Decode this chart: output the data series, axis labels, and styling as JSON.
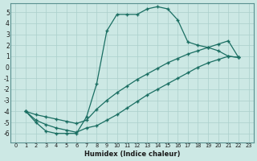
{
  "xlabel": "Humidex (Indice chaleur)",
  "xlim": [
    -0.5,
    23.5
  ],
  "ylim": [
    -6.8,
    5.8
  ],
  "yticks": [
    5,
    4,
    3,
    2,
    1,
    0,
    -1,
    -2,
    -3,
    -4,
    -5,
    -6
  ],
  "xticks": [
    0,
    1,
    2,
    3,
    4,
    5,
    6,
    7,
    8,
    9,
    10,
    11,
    12,
    13,
    14,
    15,
    16,
    17,
    18,
    19,
    20,
    21,
    22,
    23
  ],
  "bg_color": "#cce8e4",
  "grid_color": "#aacfcb",
  "line_color": "#1a6e62",
  "curve1_x": [
    1,
    2,
    3,
    4,
    5,
    6,
    7,
    8,
    9,
    10,
    11,
    12,
    13,
    14,
    15,
    16,
    17,
    18,
    19,
    20,
    21,
    22
  ],
  "curve1_y": [
    -4.0,
    -5.0,
    -5.8,
    -6.0,
    -6.0,
    -6.0,
    -4.5,
    -1.5,
    3.3,
    4.8,
    4.8,
    4.8,
    5.3,
    5.5,
    5.3,
    4.3,
    2.3,
    2.0,
    1.8,
    1.5,
    1.0,
    0.9
  ],
  "curve2_x": [
    1,
    2,
    3,
    4,
    5,
    6,
    7,
    8,
    9,
    10,
    11,
    12,
    13,
    14,
    15,
    16,
    17,
    18,
    19,
    20,
    21,
    22
  ],
  "curve2_y": [
    -4.0,
    -4.3,
    -4.5,
    -4.7,
    -4.9,
    -5.1,
    -4.8,
    -3.8,
    -3.0,
    -2.3,
    -1.7,
    -1.1,
    -0.6,
    -0.1,
    0.4,
    0.8,
    1.2,
    1.5,
    1.8,
    2.1,
    2.4,
    0.9
  ],
  "curve3_x": [
    1,
    2,
    3,
    4,
    5,
    6,
    7,
    8,
    9,
    10,
    11,
    12,
    13,
    14,
    15,
    16,
    17,
    18,
    19,
    20,
    21,
    22
  ],
  "curve3_y": [
    -4.0,
    -4.8,
    -5.2,
    -5.5,
    -5.7,
    -5.9,
    -5.5,
    -5.3,
    -4.8,
    -4.3,
    -3.7,
    -3.1,
    -2.5,
    -2.0,
    -1.5,
    -1.0,
    -0.5,
    0.0,
    0.4,
    0.7,
    1.0,
    0.9
  ]
}
